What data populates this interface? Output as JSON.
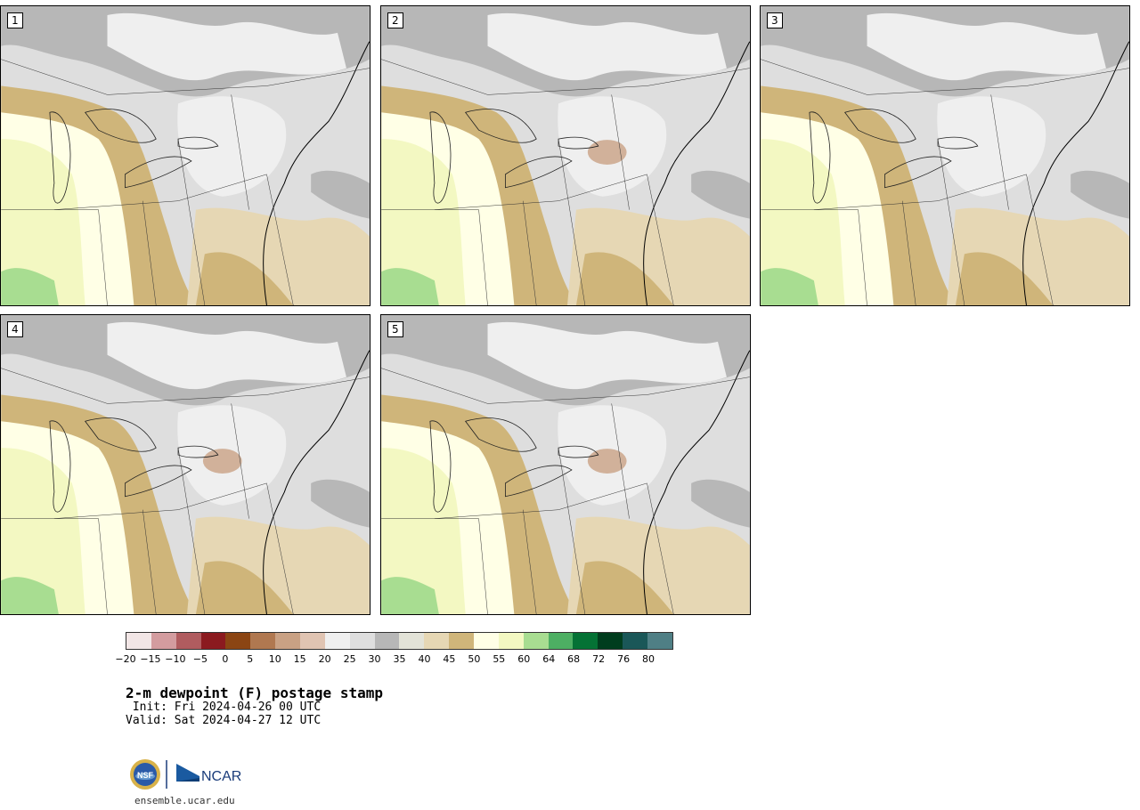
{
  "panels": [
    {
      "label": "1"
    },
    {
      "label": "2"
    },
    {
      "label": "3"
    },
    {
      "label": "4"
    },
    {
      "label": "5"
    }
  ],
  "colorbar": {
    "colors": [
      "#f2e6e6",
      "#d39c9f",
      "#b05c5f",
      "#8b1a1f",
      "#8b4513",
      "#b07850",
      "#c9a184",
      "#e0c4b2",
      "#efefef",
      "#dedede",
      "#b7b7b7",
      "#e3e3d8",
      "#e6d7b4",
      "#cfb57a",
      "#ffffe6",
      "#f3f8c2",
      "#a8dd91",
      "#4daf63",
      "#047235",
      "#003d1e",
      "#1a5758",
      "#4f7f85"
    ],
    "ticks": [
      "−20",
      "−15",
      "−10",
      "−5",
      "0",
      "5",
      "10",
      "15",
      "20",
      "25",
      "30",
      "35",
      "40",
      "45",
      "50",
      "55",
      "60",
      "64",
      "68",
      "72",
      "76",
      "80"
    ]
  },
  "title": "2-m dewpoint (F) postage stamp",
  "init": " Init: Fri 2024-04-26 00 UTC",
  "valid": "Valid: Sat 2024-04-27 12 UTC",
  "footer": "ensemble.ucar.edu",
  "logo": {
    "nsf": "NSF",
    "ncar": "NCAR"
  }
}
